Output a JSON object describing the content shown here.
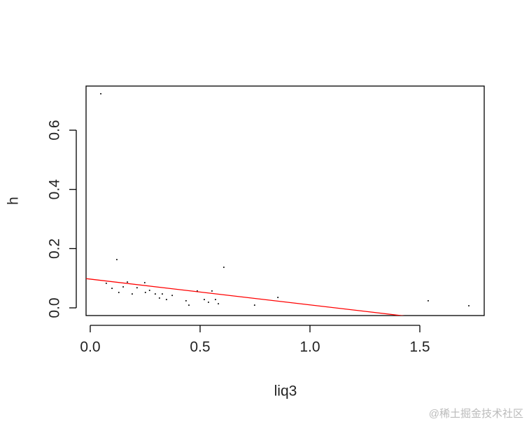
{
  "chart_data": {
    "type": "scatter",
    "xlabel": "liq3",
    "ylabel": "h",
    "x": [
      0.048,
      0.121,
      0.608,
      0.073,
      0.099,
      0.13,
      0.15,
      0.169,
      0.191,
      0.213,
      0.248,
      0.251,
      0.27,
      0.296,
      0.315,
      0.328,
      0.347,
      0.373,
      0.436,
      0.449,
      0.487,
      0.519,
      0.538,
      0.554,
      0.57,
      0.583,
      0.748,
      0.854,
      1.538,
      1.723
    ],
    "series": [
      {
        "name": "h",
        "color": "#000000",
        "values": [
          0.723,
          0.163,
          0.137,
          0.083,
          0.066,
          0.052,
          0.071,
          0.087,
          0.047,
          0.068,
          0.085,
          0.052,
          0.059,
          0.047,
          0.033,
          0.047,
          0.028,
          0.042,
          0.024,
          0.009,
          0.057,
          0.028,
          0.019,
          0.057,
          0.028,
          0.014,
          0.009,
          0.035,
          0.024,
          0.007
        ]
      }
    ],
    "fit_line": {
      "intercept": 0.097,
      "slope": -0.087,
      "color": "#ff0000"
    },
    "xlim": [
      -0.019,
      1.793
    ],
    "ylim": [
      -0.026,
      0.749
    ],
    "xticks": [
      {
        "value": 0,
        "label": "0.0"
      },
      0.5,
      {
        "value": 1,
        "label": "1.0"
      },
      1.5
    ],
    "yticks": [
      {
        "value": 0,
        "label": "0.0"
      },
      0.2,
      0.4,
      0.6
    ],
    "watermark": "@稀土掘金技术社区"
  }
}
